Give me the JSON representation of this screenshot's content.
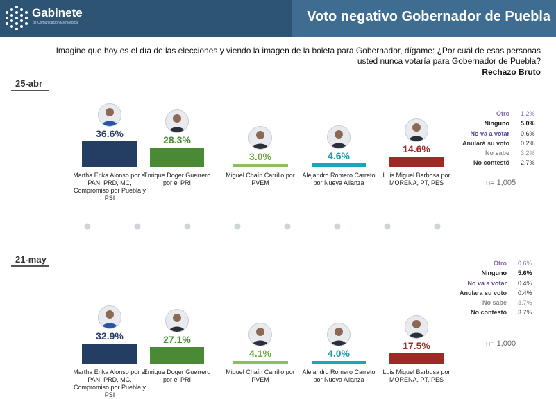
{
  "header": {
    "brand_name": "Gabinete",
    "brand_sub": "de Comunicación Estratégica",
    "title": "Voto negativo Gobernador de Puebla"
  },
  "question": "Imagine que hoy es el día de las elecciones y viendo la imagen de la boleta para Gobernador, dígame: ¿Por cuál de esas personas usted nunca votaría para Gobernador de Puebla?",
  "measure_label": "Rechazo Bruto",
  "colors": {
    "martha": "#243e63",
    "enrique": "#4a8a35",
    "miguel": "#8dc05c",
    "alejandro": "#1aa5b8",
    "luis": "#9e2a26",
    "header": "#2d5573",
    "header_title": "#3f6d91"
  },
  "chart_data": [
    {
      "type": "bar",
      "date": "25-abr",
      "categories": [
        "Martha Erika Alonso por el PAN, PRD, MC, Compromiso por Puebla y PSI",
        "Enrique Doger Guerrero por el PRI",
        "Miguel Chaín Carrillo por PVEM",
        "Alejandro Romero Carreto por Nueva Alianza",
        "Luis Miguel Barbosa por MORENA, PT, PES"
      ],
      "values": [
        36.6,
        28.3,
        3.0,
        4.6,
        14.6
      ],
      "value_labels": [
        "36.6%",
        "28.3%",
        "3.0%",
        "4.6%",
        "14.6%"
      ],
      "other_responses": [
        {
          "label": "Otro",
          "value": "1.2%"
        },
        {
          "label": "Ninguno",
          "value": "5.0%"
        },
        {
          "label": "No va a votar",
          "value": "0.6%"
        },
        {
          "label": "Anulará su voto",
          "value": "0.2%"
        },
        {
          "label": "No sabe",
          "value": "3.2%"
        },
        {
          "label": "No contestó",
          "value": "2.7%"
        }
      ],
      "n": "n= 1,005"
    },
    {
      "type": "bar",
      "date": "21-may",
      "categories": [
        "Martha Erika Alonso por el PAN, PRD, MC, Compromiso por Puebla y PSI",
        "Enrique Doger Guerrero por el PRI",
        "Miguel Chaín Carrillo por PVEM",
        "Alejandro Romero Carreto por Nueva Alianza",
        "Luis Miguel Barbosa por MORENA, PT, PES"
      ],
      "values": [
        32.9,
        27.1,
        4.1,
        4.0,
        17.5
      ],
      "value_labels": [
        "32.9%",
        "27.1%",
        "4.1%",
        "4.0%",
        "17.5%"
      ],
      "other_responses": [
        {
          "label": "Otro",
          "value": "0.6%"
        },
        {
          "label": "Ninguno",
          "value": "5.6%"
        },
        {
          "label": "No va a votar",
          "value": "0.4%"
        },
        {
          "label": "Anulara su voto",
          "value": "0.4%"
        },
        {
          "label": "No sabe",
          "value": "3.7%"
        },
        {
          "label": "No contestó",
          "value": "3.7%"
        }
      ],
      "n": "n= 1,000"
    }
  ]
}
